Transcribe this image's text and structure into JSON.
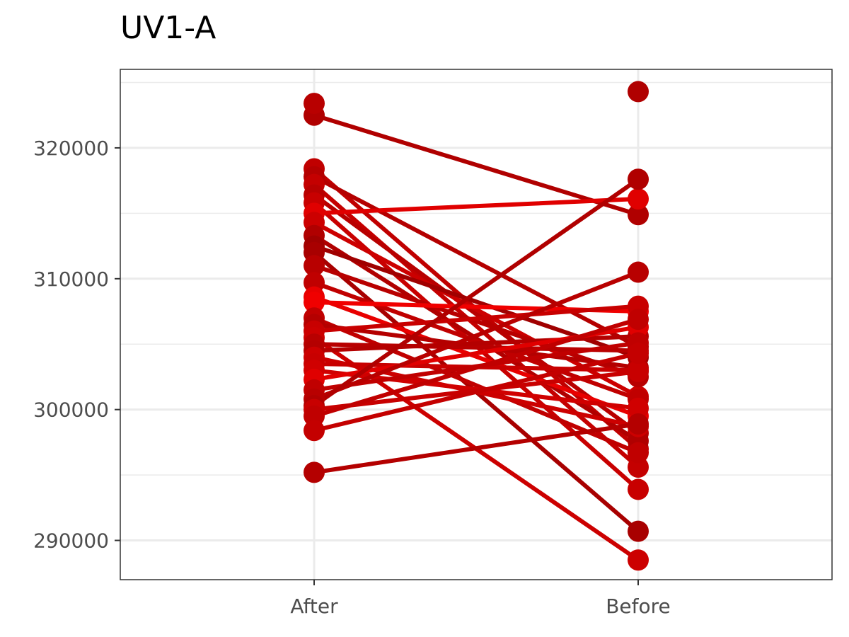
{
  "chart_data": {
    "type": "line",
    "title": "UV1-A",
    "xlabel": "",
    "ylabel": "",
    "categories": [
      "After",
      "Before"
    ],
    "y_ticks": [
      "290000",
      "300000",
      "310000",
      "320000"
    ],
    "y_tick_values": [
      290000,
      300000,
      310000,
      320000
    ],
    "ylim": [
      287000,
      326000
    ],
    "grid": true,
    "legend": "none",
    "extra_points": [
      {
        "category": "After",
        "value": 323400,
        "color": "#b80000"
      },
      {
        "category": "Before",
        "value": 324300,
        "color": "#b00000"
      }
    ],
    "series": [
      {
        "values": [
          322500,
          314900
        ],
        "color": "#b00000"
      },
      {
        "values": [
          318400,
          297000
        ],
        "color": "#c00000"
      },
      {
        "values": [
          317800,
          304800
        ],
        "color": "#b40000"
      },
      {
        "values": [
          317200,
          295600
        ],
        "color": "#c40000"
      },
      {
        "values": [
          316400,
          298200
        ],
        "color": "#b80000"
      },
      {
        "values": [
          315800,
          293900
        ],
        "color": "#c80000"
      },
      {
        "values": [
          315000,
          316100
        ],
        "color": "#e00000"
      },
      {
        "values": [
          314300,
          301000
        ],
        "color": "#cc0000"
      },
      {
        "values": [
          313300,
          297600
        ],
        "color": "#b00000"
      },
      {
        "values": [
          312500,
          304000
        ],
        "color": "#a00000"
      },
      {
        "values": [
          312000,
          290700
        ],
        "color": "#a80000"
      },
      {
        "values": [
          311000,
          302500
        ],
        "color": "#b80000"
      },
      {
        "values": [
          309700,
          300800
        ],
        "color": "#c00000"
      },
      {
        "values": [
          308600,
          299500
        ],
        "color": "#e80000"
      },
      {
        "values": [
          308200,
          307500
        ],
        "color": "#f00000"
      },
      {
        "values": [
          307000,
          296700
        ],
        "color": "#c00000"
      },
      {
        "values": [
          306500,
          303200
        ],
        "color": "#b40000"
      },
      {
        "values": [
          306000,
          307900
        ],
        "color": "#c80000"
      },
      {
        "values": [
          305500,
          288500
        ],
        "color": "#cc0000"
      },
      {
        "values": [
          305000,
          304500
        ],
        "color": "#b80000"
      },
      {
        "values": [
          304500,
          305600
        ],
        "color": "#b40000"
      },
      {
        "values": [
          304000,
          298700
        ],
        "color": "#cc0000"
      },
      {
        "values": [
          303500,
          303000
        ],
        "color": "#c80000"
      },
      {
        "values": [
          303000,
          300100
        ],
        "color": "#d00000"
      },
      {
        "values": [
          302300,
          306300
        ],
        "color": "#e00000"
      },
      {
        "values": [
          301500,
          305100
        ],
        "color": "#c00000"
      },
      {
        "values": [
          300800,
          310500
        ],
        "color": "#b80000"
      },
      {
        "values": [
          300300,
          317600
        ],
        "color": "#b00000"
      },
      {
        "values": [
          300000,
          302900
        ],
        "color": "#c80000"
      },
      {
        "values": [
          299500,
          306900
        ],
        "color": "#c00000"
      },
      {
        "values": [
          298400,
          304300
        ],
        "color": "#c40000"
      },
      {
        "values": [
          295200,
          298900
        ],
        "color": "#b40000"
      }
    ]
  }
}
